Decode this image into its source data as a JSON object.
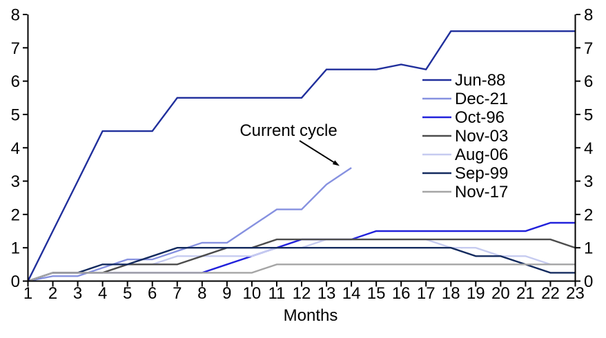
{
  "chart_data": {
    "type": "line",
    "title": "",
    "xlabel": "Months",
    "x": [
      1,
      2,
      3,
      4,
      5,
      6,
      7,
      8,
      9,
      10,
      11,
      12,
      13,
      14,
      15,
      16,
      17,
      18,
      19,
      20,
      21,
      22,
      23
    ],
    "xlim": [
      1,
      23
    ],
    "ylim": [
      0,
      8
    ],
    "yticks_left": [
      0,
      1,
      2,
      3,
      4,
      5,
      6,
      7,
      8
    ],
    "yticks_right": [
      0,
      1,
      2,
      3,
      4,
      5,
      6,
      7,
      8
    ],
    "grid": false,
    "legend_position": "middle-right",
    "axis_color": "#000000",
    "annotation": {
      "text": "Current cycle",
      "target_series": "Dec-21",
      "target_point": {
        "month": 14,
        "value": 3.4
      }
    },
    "series": [
      {
        "name": "Jun-88",
        "color": "#202F9C",
        "z": 8,
        "values": [
          0,
          1.5,
          3,
          4.5,
          4.5,
          4.5,
          5.5,
          5.5,
          5.5,
          5.5,
          5.5,
          5.5,
          6.35,
          6.35,
          6.35,
          6.5,
          6.35,
          7.5,
          7.5,
          7.5,
          7.5,
          7.5,
          7.5
        ]
      },
      {
        "name": "Dec-21",
        "color": "#8691E0",
        "z": 2,
        "values": [
          0,
          0.15,
          0.15,
          0.4,
          0.65,
          0.65,
          0.9,
          1.15,
          1.15,
          1.65,
          2.15,
          2.15,
          2.9,
          3.4
        ]
      },
      {
        "name": "Oct-96",
        "color": "#2121DB",
        "z": 3,
        "values": [
          0,
          0.25,
          0.25,
          0.25,
          0.25,
          0.25,
          0.25,
          0.25,
          0.5,
          0.75,
          1,
          1.25,
          1.25,
          1.25,
          1.5,
          1.5,
          1.5,
          1.5,
          1.5,
          1.5,
          1.5,
          1.75,
          1.75
        ]
      },
      {
        "name": "Nov-03",
        "color": "#4C4C4C",
        "z": 5,
        "values": [
          0,
          0.25,
          0.25,
          0.25,
          0.5,
          0.5,
          0.5,
          0.75,
          1,
          1,
          1.25,
          1.25,
          1.25,
          1.25,
          1.25,
          1.25,
          1.25,
          1.25,
          1.25,
          1.25,
          1.25,
          1.25,
          1
        ]
      },
      {
        "name": "Aug-06",
        "color": "#C6CBF0",
        "z": 4,
        "values": [
          0,
          0.25,
          0.25,
          0.25,
          0.5,
          0.5,
          0.75,
          0.75,
          0.75,
          0.75,
          1,
          1,
          1.25,
          1.25,
          1.25,
          1.25,
          1.25,
          1,
          1,
          0.75,
          0.75,
          0.5,
          0.5
        ]
      },
      {
        "name": "Sep-99",
        "color": "#132A5E",
        "z": 6,
        "values": [
          0,
          0.25,
          0.25,
          0.5,
          0.5,
          0.75,
          1,
          1,
          1,
          1,
          1,
          1,
          1,
          1,
          1,
          1,
          1,
          1,
          0.75,
          0.75,
          0.5,
          0.25,
          0.25
        ]
      },
      {
        "name": "Nov-17",
        "color": "#A5A5A5",
        "z": 7,
        "values": [
          0,
          0.25,
          0.25,
          0.25,
          0.25,
          0.25,
          0.25,
          0.25,
          0.25,
          0.25,
          0.5,
          0.5,
          0.5,
          0.5,
          0.5,
          0.5,
          0.5,
          0.5,
          0.5,
          0.5,
          0.5,
          0.5,
          0.5
        ]
      }
    ]
  }
}
